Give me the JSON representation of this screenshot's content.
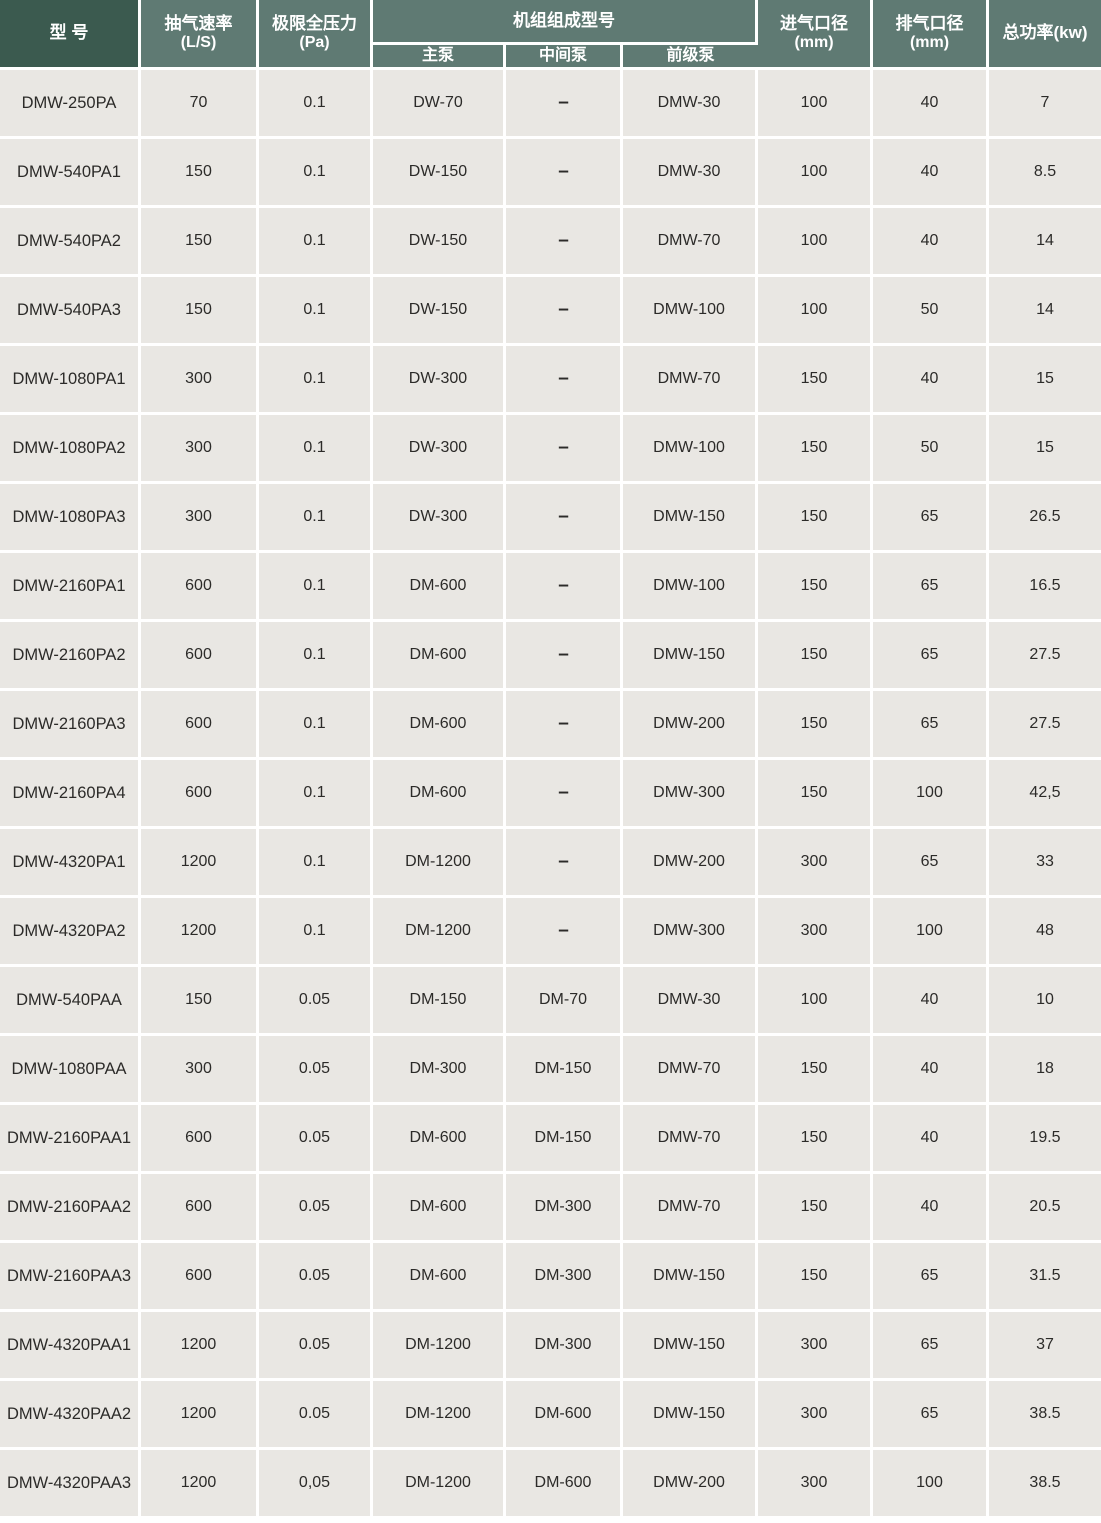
{
  "colors": {
    "header_dark": "#3b5a4f",
    "header_light": "#5f7a73",
    "cell_background": "#e9e7e3",
    "separator": "#ffffff",
    "header_text": "#ffffff",
    "cell_text": "#2c2b29"
  },
  "table": {
    "dash": "–",
    "column_keys": [
      "model",
      "pumping-speed",
      "ultimate-pressure",
      "main-pump",
      "middle-pump",
      "fore-pump",
      "inlet-diameter",
      "outlet-diameter",
      "total-power"
    ],
    "header": {
      "model": "型 号",
      "speed_l1": "抽气速率",
      "speed_l2": "(L/S)",
      "pressure_l1": "极限全压力",
      "pressure_l2": "(Pa)",
      "group": "机组组成型号",
      "main_pump": "主泵",
      "middle_pump": "中间泵",
      "fore_pump": "前级泵",
      "inlet_l1": "进气口径",
      "inlet_l2": "(mm)",
      "outlet_l1": "排气口径",
      "outlet_l2": "(mm)",
      "power": "总功率(kw)"
    },
    "rows": [
      [
        "DMW-250PA",
        "70",
        "0.1",
        "DW-70",
        "–",
        "DMW-30",
        "100",
        "40",
        "7"
      ],
      [
        "DMW-540PA1",
        "150",
        "0.1",
        "DW-150",
        "–",
        "DMW-30",
        "100",
        "40",
        "8.5"
      ],
      [
        "DMW-540PA2",
        "150",
        "0.1",
        "DW-150",
        "–",
        "DMW-70",
        "100",
        "40",
        "14"
      ],
      [
        "DMW-540PA3",
        "150",
        "0.1",
        "DW-150",
        "–",
        "DMW-100",
        "100",
        "50",
        "14"
      ],
      [
        "DMW-1080PA1",
        "300",
        "0.1",
        "DW-300",
        "–",
        "DMW-70",
        "150",
        "40",
        "15"
      ],
      [
        "DMW-1080PA2",
        "300",
        "0.1",
        "DW-300",
        "–",
        "DMW-100",
        "150",
        "50",
        "15"
      ],
      [
        "DMW-1080PA3",
        "300",
        "0.1",
        "DW-300",
        "–",
        "DMW-150",
        "150",
        "65",
        "26.5"
      ],
      [
        "DMW-2160PA1",
        "600",
        "0.1",
        "DM-600",
        "–",
        "DMW-100",
        "150",
        "65",
        "16.5"
      ],
      [
        "DMW-2160PA2",
        "600",
        "0.1",
        "DM-600",
        "–",
        "DMW-150",
        "150",
        "65",
        "27.5"
      ],
      [
        "DMW-2160PA3",
        "600",
        "0.1",
        "DM-600",
        "–",
        "DMW-200",
        "150",
        "65",
        "27.5"
      ],
      [
        "DMW-2160PA4",
        "600",
        "0.1",
        "DM-600",
        "–",
        "DMW-300",
        "150",
        "100",
        "42,5"
      ],
      [
        "DMW-4320PA1",
        "1200",
        "0.1",
        "DM-1200",
        "–",
        "DMW-200",
        "300",
        "65",
        "33"
      ],
      [
        "DMW-4320PA2",
        "1200",
        "0.1",
        "DM-1200",
        "–",
        "DMW-300",
        "300",
        "100",
        "48"
      ],
      [
        "DMW-540PAA",
        "150",
        "0.05",
        "DM-150",
        "DM-70",
        "DMW-30",
        "100",
        "40",
        "10"
      ],
      [
        "DMW-1080PAA",
        "300",
        "0.05",
        "DM-300",
        "DM-150",
        "DMW-70",
        "150",
        "40",
        "18"
      ],
      [
        "DMW-2160PAA1",
        "600",
        "0.05",
        "DM-600",
        "DM-150",
        "DMW-70",
        "150",
        "40",
        "19.5"
      ],
      [
        "DMW-2160PAA2",
        "600",
        "0.05",
        "DM-600",
        "DM-300",
        "DMW-70",
        "150",
        "40",
        "20.5"
      ],
      [
        "DMW-2160PAA3",
        "600",
        "0.05",
        "DM-600",
        "DM-300",
        "DMW-150",
        "150",
        "65",
        "31.5"
      ],
      [
        "DMW-4320PAA1",
        "1200",
        "0.05",
        "DM-1200",
        "DM-300",
        "DMW-150",
        "300",
        "65",
        "37"
      ],
      [
        "DMW-4320PAA2",
        "1200",
        "0.05",
        "DM-1200",
        "DM-600",
        "DMW-150",
        "300",
        "65",
        "38.5"
      ],
      [
        "DMW-4320PAA3",
        "1200",
        "0,05",
        "DM-1200",
        "DM-600",
        "DMW-200",
        "300",
        "100",
        "38.5"
      ]
    ]
  }
}
